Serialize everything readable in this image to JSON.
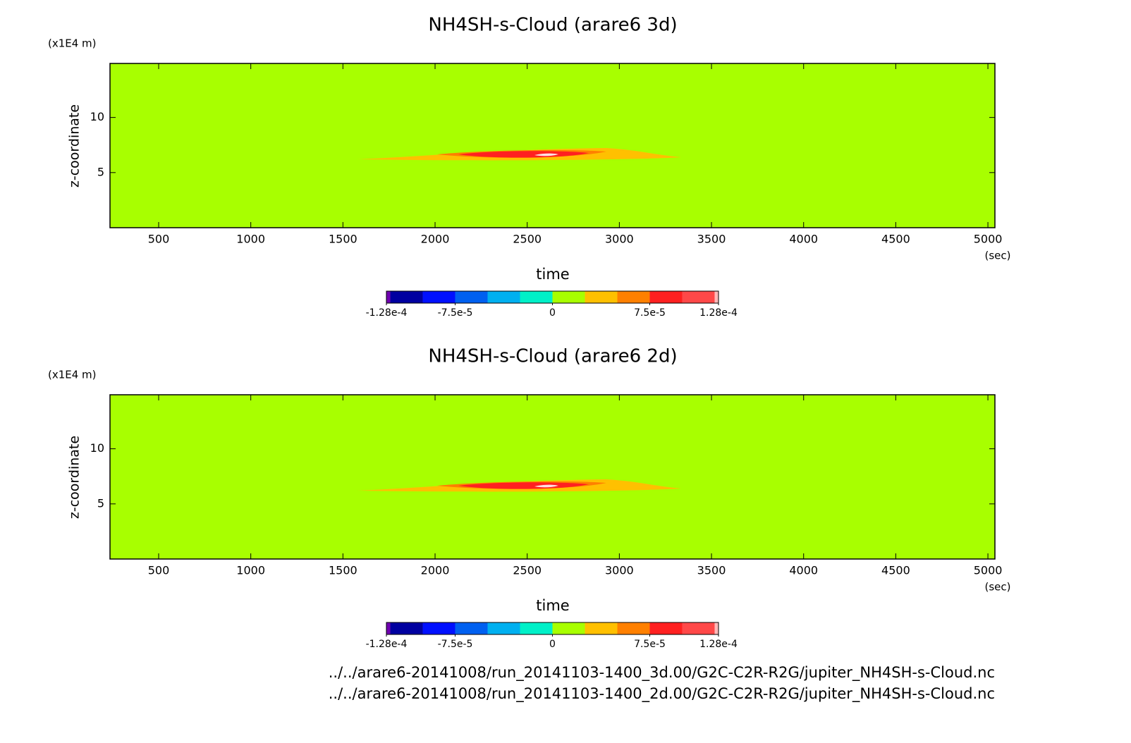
{
  "chart_data": [
    {
      "type": "contour",
      "title": "NH4SH-s-Cloud (arare6 3d)",
      "xlabel": "time",
      "ylabel": "z-coordinate",
      "xunit": "(sec)",
      "yunit": "(x1E4 m)",
      "xlim": [
        236,
        5038
      ],
      "ylim": [
        0,
        14.9
      ],
      "xticks": [
        500,
        1000,
        1500,
        2000,
        2500,
        3000,
        3500,
        4000,
        4500,
        5000
      ],
      "yticks": [
        5,
        10
      ],
      "colorbar": {
        "levels": [
          -0.000128,
          -0.000125,
          -0.0001,
          -7.5e-05,
          -5e-05,
          -2.5e-05,
          0,
          2.5e-05,
          5e-05,
          7.5e-05,
          0.0001,
          0.000125,
          0.000128
        ],
        "colors": [
          "#7000b0",
          "#0000a0",
          "#0010ff",
          "#0060f0",
          "#00b0f0",
          "#00f0c8",
          "#a8ff00",
          "#ffc000",
          "#ff8000",
          "#ff2020",
          "#ff4848",
          "#ffb8b8"
        ],
        "ticks": [
          {
            "value": -0.000128,
            "label": "-1.28e-4"
          },
          {
            "value": -7.5e-05,
            "label": "-7.5e-5"
          },
          0,
          {
            "value": 7.5e-05,
            "label": "7.5e-5"
          },
          {
            "value": 0.000128,
            "label": "1.28e-4"
          }
        ]
      }
    },
    {
      "type": "contour",
      "title": "NH4SH-s-Cloud (arare6 2d)",
      "xlabel": "time",
      "ylabel": "z-coordinate",
      "xunit": "(sec)",
      "yunit": "(x1E4 m)",
      "xlim": [
        236,
        5038
      ],
      "ylim": [
        0,
        14.9
      ],
      "xticks": [
        500,
        1000,
        1500,
        2000,
        2500,
        3000,
        3500,
        4000,
        4500,
        5000
      ],
      "yticks": [
        5,
        10
      ],
      "colorbar": {
        "levels": [
          -0.000128,
          -0.000125,
          -0.0001,
          -7.5e-05,
          -5e-05,
          -2.5e-05,
          0,
          2.5e-05,
          5e-05,
          7.5e-05,
          0.0001,
          0.000125,
          0.000128
        ],
        "colors": [
          "#7000b0",
          "#0000a0",
          "#0010ff",
          "#0060f0",
          "#00b0f0",
          "#00f0c8",
          "#a8ff00",
          "#ffc000",
          "#ff8000",
          "#ff2020",
          "#ff4848",
          "#ffb8b8"
        ],
        "ticks": [
          {
            "value": -0.000128,
            "label": "-1.28e-4"
          },
          {
            "value": -7.5e-05,
            "label": "-7.5e-5"
          },
          0,
          {
            "value": 7.5e-05,
            "label": "7.5e-5"
          },
          {
            "value": 0.000128,
            "label": "1.28e-4"
          }
        ]
      }
    }
  ],
  "footer": [
    "../../arare6-20141008/run_20141103-1400_3d.00/G2C-C2R-R2G/jupiter_NH4SH-s-Cloud.nc",
    "../../arare6-20141008/run_20141103-1400_2d.00/G2C-C2R-R2G/jupiter_NH4SH-s-Cloud.nc"
  ]
}
